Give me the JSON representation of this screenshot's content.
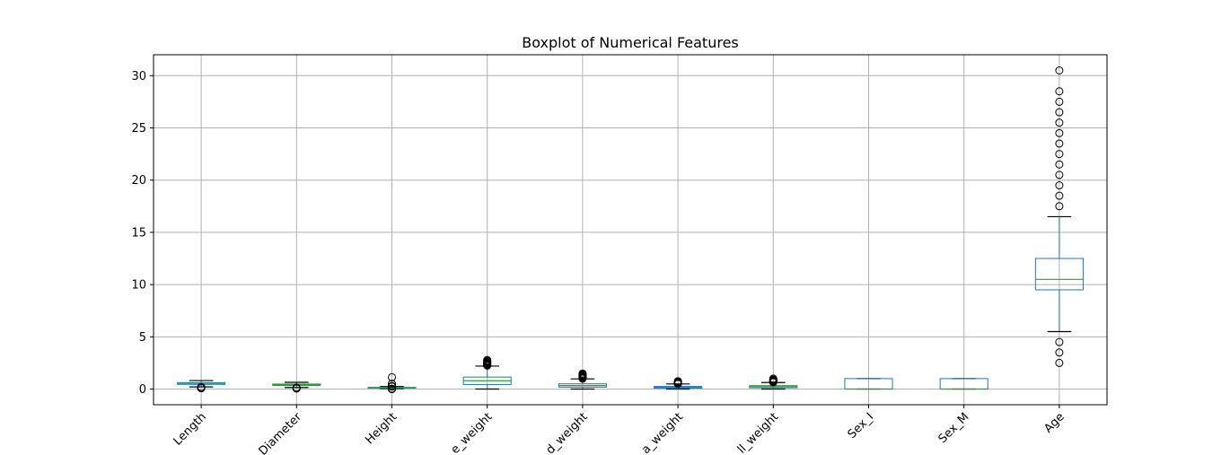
{
  "chart_data": {
    "type": "boxplot",
    "title": "Boxplot of Numerical Features",
    "xlabel": "",
    "ylabel": "",
    "ylim": [
      -1.5,
      32
    ],
    "yticks": [
      0,
      5,
      10,
      15,
      20,
      25,
      30
    ],
    "grid": true,
    "categories": [
      "Length",
      "Diameter",
      "Height",
      "Whole_weight",
      "Shucked_weight",
      "Viscera_weight",
      "Shell_weight",
      "Sex_I",
      "Sex_M",
      "Age"
    ],
    "tick_labels_visible": [
      "Length",
      "Diameter",
      "Height",
      "e_weight",
      "d_weight",
      "a_weight",
      "ll_weight",
      "Sex_I",
      "Sex_M",
      "Age"
    ],
    "series": [
      {
        "name": "Length",
        "q1": 0.45,
        "median": 0.545,
        "q3": 0.615,
        "whisker_low": 0.205,
        "whisker_high": 0.815,
        "outliers": [
          0.075,
          0.11,
          0.13,
          0.14,
          0.15,
          0.16,
          0.17,
          0.18,
          0.19
        ]
      },
      {
        "name": "Diameter",
        "q1": 0.35,
        "median": 0.425,
        "q3": 0.48,
        "whisker_low": 0.155,
        "whisker_high": 0.65,
        "outliers": [
          0.055,
          0.09,
          0.1,
          0.11,
          0.12,
          0.13,
          0.14
        ]
      },
      {
        "name": "Height",
        "q1": 0.115,
        "median": 0.14,
        "q3": 0.165,
        "whisker_low": 0.04,
        "whisker_high": 0.24,
        "outliers": [
          0.0,
          0.01,
          0.015,
          0.02,
          0.025,
          0.03,
          0.25,
          0.26,
          0.27,
          0.3,
          0.51,
          1.13
        ]
      },
      {
        "name": "Whole_weight",
        "q1": 0.44,
        "median": 0.8,
        "q3": 1.15,
        "whisker_low": 0.002,
        "whisker_high": 2.2,
        "outliers": [
          2.25,
          2.3,
          2.35,
          2.4,
          2.45,
          2.5,
          2.55,
          2.6,
          2.65,
          2.7,
          2.78
        ]
      },
      {
        "name": "Shucked_weight",
        "q1": 0.186,
        "median": 0.336,
        "q3": 0.502,
        "whisker_low": 0.001,
        "whisker_high": 0.976,
        "outliers": [
          1.0,
          1.05,
          1.1,
          1.15,
          1.2,
          1.25,
          1.3,
          1.35,
          1.4,
          1.49
        ]
      },
      {
        "name": "Viscera_weight",
        "q1": 0.093,
        "median": 0.171,
        "q3": 0.253,
        "whisker_low": 0.0005,
        "whisker_high": 0.492,
        "outliers": [
          0.5,
          0.52,
          0.54,
          0.56,
          0.58,
          0.6,
          0.64,
          0.69,
          0.76
        ]
      },
      {
        "name": "Shell_weight",
        "q1": 0.13,
        "median": 0.234,
        "q3": 0.329,
        "whisker_low": 0.0015,
        "whisker_high": 0.625,
        "outliers": [
          0.65,
          0.68,
          0.7,
          0.72,
          0.75,
          0.78,
          0.8,
          0.85,
          0.9,
          1.0
        ]
      },
      {
        "name": "Sex_I",
        "q1": 0.0,
        "median": 0.0,
        "q3": 1.0,
        "whisker_low": 0.0,
        "whisker_high": 1.0,
        "outliers": []
      },
      {
        "name": "Sex_M",
        "q1": 0.0,
        "median": 0.0,
        "q3": 1.0,
        "whisker_low": 0.0,
        "whisker_high": 1.0,
        "outliers": []
      },
      {
        "name": "Age",
        "q1": 9.5,
        "median": 10.5,
        "q3": 12.5,
        "whisker_low": 5.5,
        "whisker_high": 16.5,
        "outliers": [
          2.5,
          3.5,
          4.5,
          17.5,
          18.5,
          19.5,
          20.5,
          21.5,
          22.5,
          23.5,
          24.5,
          25.5,
          26.5,
          27.5,
          28.5,
          30.5
        ]
      }
    ]
  },
  "colors": {
    "box": "#1f77b4",
    "median": "#2ca02c",
    "whisker_cap": "#000000",
    "grid": "#b0b0b0",
    "outlier_edge": "#000000"
  }
}
